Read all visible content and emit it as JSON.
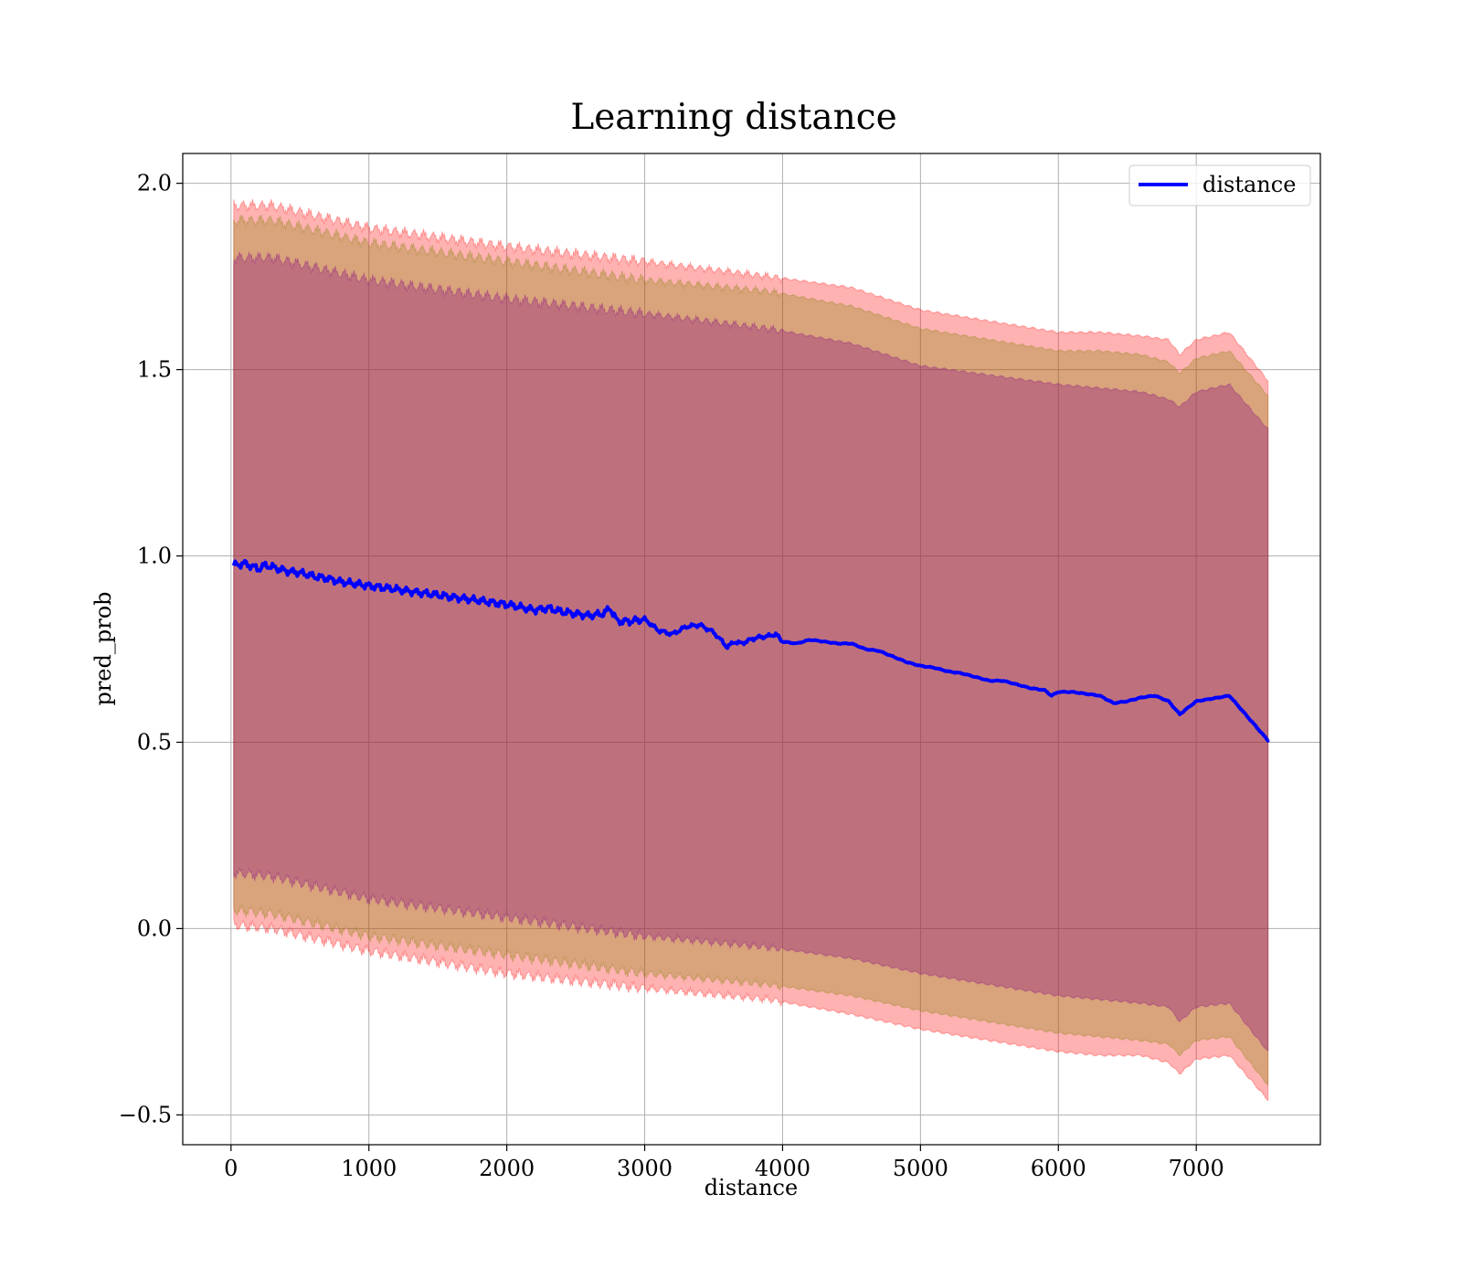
{
  "chart_data": {
    "type": "line",
    "title": "Learning distance",
    "xlabel": "distance",
    "ylabel": "pred_prob",
    "xlim": [
      -350,
      7900
    ],
    "ylim": [
      -0.58,
      2.08
    ],
    "xticks": [
      0,
      1000,
      2000,
      3000,
      4000,
      5000,
      6000,
      7000
    ],
    "xtick_labels": [
      "0",
      "1000",
      "2000",
      "3000",
      "4000",
      "5000",
      "6000",
      "7000"
    ],
    "yticks": [
      -0.5,
      0.0,
      0.5,
      1.0,
      1.5,
      2.0
    ],
    "ytick_labels": [
      "−0.5",
      "0.0",
      "0.5",
      "1.0",
      "1.5",
      "2.0"
    ],
    "grid": true,
    "legend": {
      "position": "top-right",
      "entries": [
        "distance"
      ]
    },
    "series": [
      {
        "name": "distance",
        "color": "#0000ff",
        "x": [
          20,
          100,
          200,
          250,
          300,
          400,
          500,
          600,
          700,
          800,
          900,
          1000,
          1100,
          1200,
          1300,
          1400,
          1500,
          1600,
          1700,
          1800,
          1900,
          2000,
          2100,
          2200,
          2300,
          2400,
          2500,
          2600,
          2700,
          2750,
          2800,
          2900,
          3000,
          3100,
          3200,
          3300,
          3400,
          3500,
          3600,
          3650,
          3700,
          3800,
          3900,
          3950,
          4000,
          4100,
          4200,
          4300,
          4400,
          4500,
          4600,
          4700,
          4800,
          4900,
          5000,
          5100,
          5200,
          5300,
          5400,
          5500,
          5600,
          5700,
          5800,
          5900,
          5950,
          6000,
          6100,
          6200,
          6300,
          6400,
          6500,
          6600,
          6700,
          6800,
          6880,
          7000,
          7240,
          7520
        ],
        "y": [
          0.975,
          0.98,
          0.965,
          0.975,
          0.97,
          0.96,
          0.955,
          0.945,
          0.94,
          0.93,
          0.925,
          0.92,
          0.915,
          0.91,
          0.905,
          0.9,
          0.895,
          0.89,
          0.885,
          0.88,
          0.875,
          0.87,
          0.862,
          0.855,
          0.86,
          0.85,
          0.845,
          0.84,
          0.845,
          0.86,
          0.825,
          0.825,
          0.83,
          0.8,
          0.79,
          0.81,
          0.815,
          0.795,
          0.755,
          0.77,
          0.765,
          0.78,
          0.785,
          0.79,
          0.77,
          0.765,
          0.775,
          0.77,
          0.765,
          0.765,
          0.75,
          0.745,
          0.73,
          0.715,
          0.705,
          0.7,
          0.69,
          0.685,
          0.675,
          0.665,
          0.665,
          0.655,
          0.645,
          0.64,
          0.625,
          0.635,
          0.635,
          0.63,
          0.625,
          0.605,
          0.61,
          0.62,
          0.625,
          0.61,
          0.575,
          0.61,
          0.625,
          0.505
        ]
      }
    ],
    "bands": [
      {
        "color": "#ff0000",
        "alpha": 0.3,
        "x": [
          20,
          300,
          1000,
          2000,
          3000,
          3900,
          4500,
          5000,
          6000,
          6300,
          6600,
          6800,
          6880,
          7000,
          7240,
          7520
        ],
        "upper": [
          1.94,
          1.94,
          1.88,
          1.83,
          1.79,
          1.75,
          1.72,
          1.66,
          1.6,
          1.6,
          1.59,
          1.58,
          1.54,
          1.58,
          1.6,
          1.47
        ],
        "lower": [
          0.01,
          0.0,
          -0.06,
          -0.12,
          -0.16,
          -0.19,
          -0.23,
          -0.27,
          -0.33,
          -0.34,
          -0.34,
          -0.36,
          -0.39,
          -0.35,
          -0.34,
          -0.46
        ]
      },
      {
        "color": "#808000",
        "alpha": 0.3,
        "x": [
          20,
          300,
          1000,
          2000,
          3000,
          3900,
          4500,
          5000,
          6000,
          6300,
          6600,
          6800,
          6880,
          7000,
          7240,
          7520
        ],
        "upper": [
          1.9,
          1.9,
          1.84,
          1.79,
          1.74,
          1.71,
          1.67,
          1.61,
          1.55,
          1.55,
          1.54,
          1.52,
          1.49,
          1.53,
          1.55,
          1.43
        ],
        "lower": [
          0.05,
          0.04,
          -0.02,
          -0.07,
          -0.12,
          -0.15,
          -0.18,
          -0.22,
          -0.28,
          -0.29,
          -0.3,
          -0.31,
          -0.34,
          -0.3,
          -0.29,
          -0.42
        ]
      },
      {
        "color": "#800080",
        "alpha": 0.3,
        "x": [
          20,
          300,
          1000,
          2000,
          3000,
          3900,
          4500,
          5000,
          6000,
          6300,
          6600,
          6800,
          6880,
          7000,
          7240,
          7520
        ],
        "upper": [
          1.8,
          1.8,
          1.74,
          1.69,
          1.65,
          1.61,
          1.57,
          1.51,
          1.46,
          1.45,
          1.44,
          1.42,
          1.4,
          1.44,
          1.46,
          1.34
        ],
        "lower": [
          0.15,
          0.14,
          0.08,
          0.03,
          -0.02,
          -0.05,
          -0.08,
          -0.12,
          -0.18,
          -0.19,
          -0.2,
          -0.21,
          -0.25,
          -0.21,
          -0.2,
          -0.33
        ]
      }
    ]
  }
}
